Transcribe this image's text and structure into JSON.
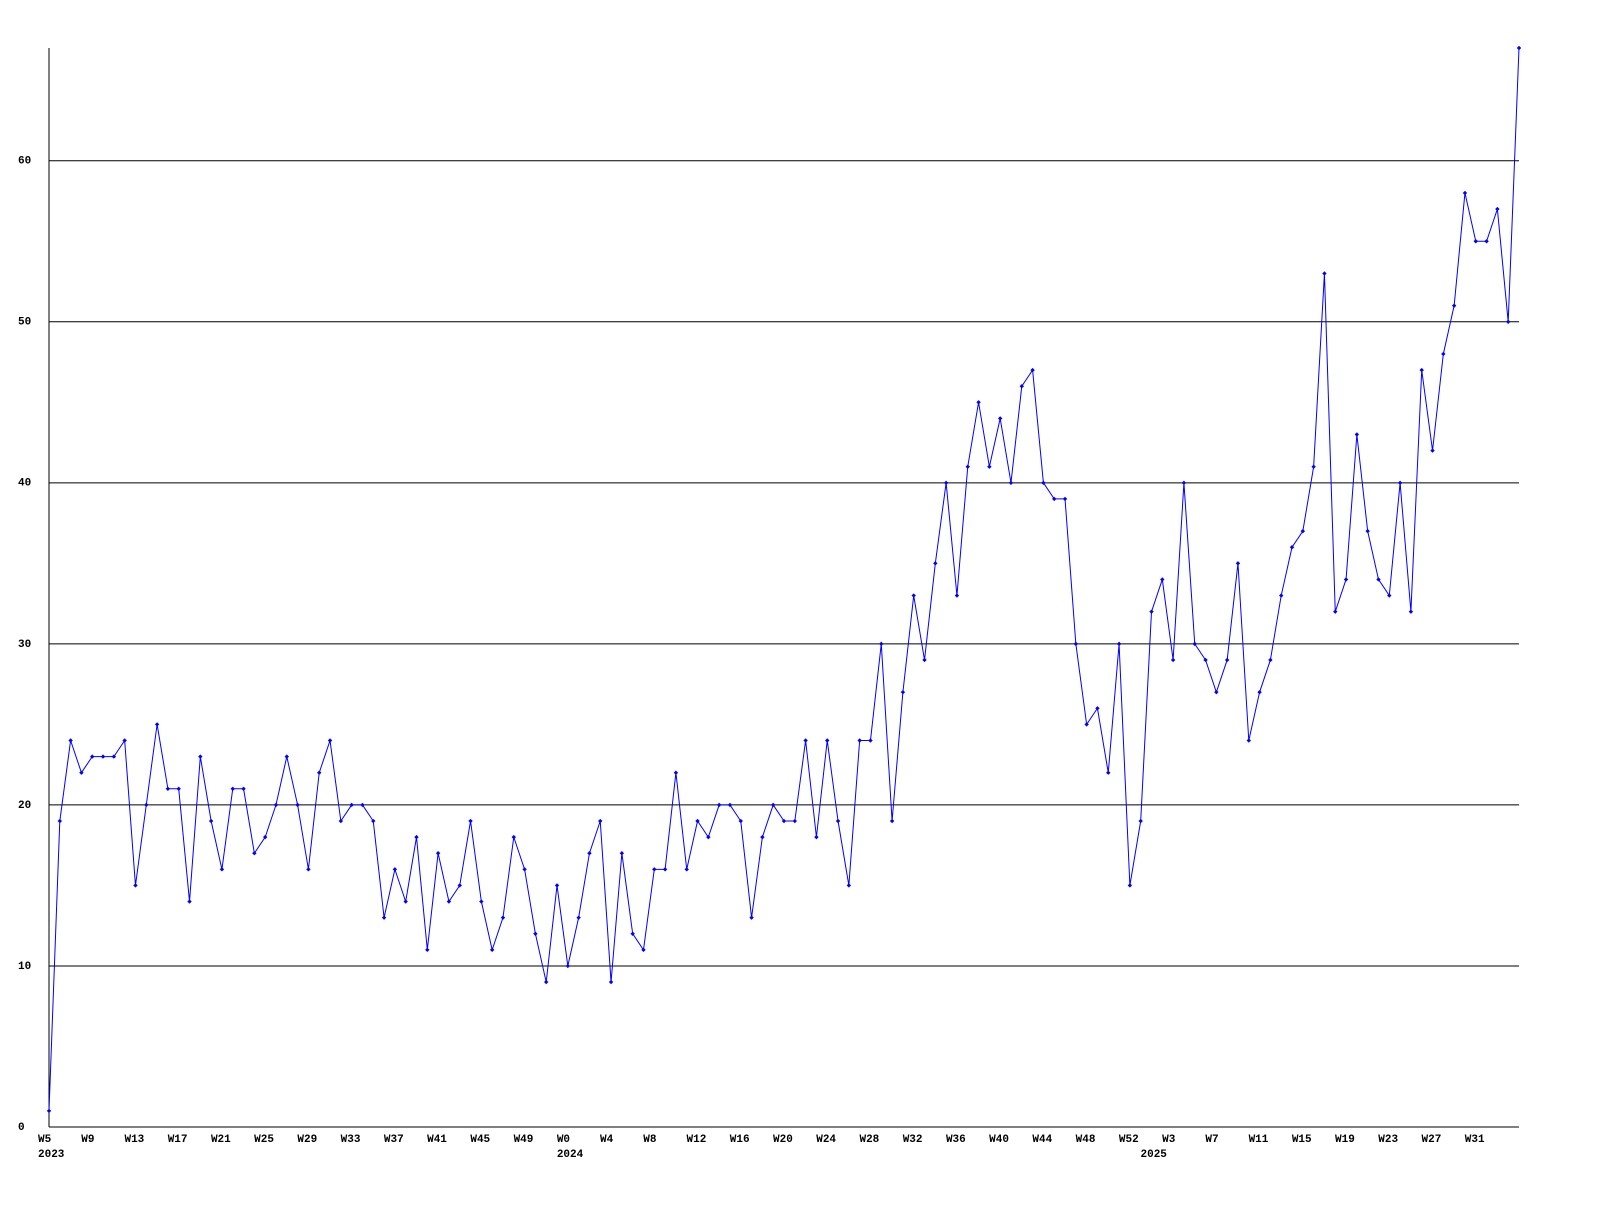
{
  "chart_data": {
    "type": "line",
    "categories": [
      "W5",
      null,
      null,
      null,
      "W9",
      null,
      null,
      null,
      "W13",
      null,
      null,
      null,
      "W17",
      null,
      null,
      null,
      "W21",
      null,
      null,
      null,
      "W25",
      null,
      null,
      null,
      "W29",
      null,
      null,
      null,
      "W33",
      null,
      null,
      null,
      "W37",
      null,
      null,
      null,
      "W41",
      null,
      null,
      null,
      "W45",
      null,
      null,
      null,
      "W49",
      null,
      null,
      null,
      "W0",
      null,
      null,
      null,
      "W4",
      null,
      null,
      null,
      "W8",
      null,
      null,
      null,
      "W12",
      null,
      null,
      null,
      "W16",
      null,
      null,
      null,
      "W20",
      null,
      null,
      null,
      "W24",
      null,
      null,
      null,
      "W28",
      null,
      null,
      null,
      "W32",
      null,
      null,
      null,
      "W36",
      null,
      null,
      null,
      "W40",
      null,
      null,
      null,
      "W44",
      null,
      null,
      null,
      "W48",
      null,
      null,
      null,
      "W52",
      null,
      null,
      null,
      "W3",
      null,
      null,
      null,
      "W7",
      null,
      null,
      null,
      "W11",
      null,
      null,
      null,
      "W15",
      null,
      null,
      null,
      "W19",
      null,
      null,
      null,
      "W23",
      null,
      null,
      null,
      "W27",
      null,
      null,
      null,
      "W31",
      null,
      null,
      null,
      null
    ],
    "category_years": [
      "2023",
      null,
      null,
      null,
      null,
      null,
      null,
      null,
      null,
      null,
      null,
      null,
      null,
      null,
      null,
      null,
      null,
      null,
      null,
      null,
      null,
      null,
      null,
      null,
      null,
      null,
      null,
      null,
      null,
      null,
      null,
      null,
      null,
      null,
      null,
      null,
      null,
      null,
      null,
      null,
      null,
      null,
      null,
      null,
      null,
      null,
      null,
      null,
      "2024",
      null,
      null,
      null,
      null,
      null,
      null,
      null,
      null,
      null,
      null,
      null,
      null,
      null,
      null,
      null,
      null,
      null,
      null,
      null,
      null,
      null,
      null,
      null,
      null,
      null,
      null,
      null,
      null,
      null,
      null,
      null,
      null,
      null,
      null,
      null,
      null,
      null,
      null,
      null,
      null,
      null,
      null,
      null,
      null,
      null,
      null,
      null,
      null,
      null,
      null,
      null,
      null,
      null,
      "2025",
      null,
      null,
      null,
      null,
      null,
      null,
      null,
      null,
      null,
      null,
      null,
      null,
      null,
      null,
      null,
      null,
      null,
      null,
      null,
      null,
      null,
      null,
      null,
      null,
      null,
      null,
      null,
      null,
      null,
      null,
      null,
      null,
      null,
      null
    ],
    "series": [
      {
        "color": "#0000ff",
        "values": [
          1,
          19,
          24,
          22,
          23,
          23,
          23,
          24,
          15,
          20,
          25,
          21,
          21,
          14,
          23,
          19,
          16,
          21,
          21,
          17,
          18,
          20,
          23,
          20,
          16,
          22,
          24,
          19,
          20,
          20,
          19,
          13,
          16,
          14,
          18,
          11,
          17,
          14,
          15,
          19,
          14,
          11,
          13,
          18,
          16,
          12,
          9,
          15,
          10,
          13,
          17,
          19,
          9,
          17,
          12,
          11,
          16,
          16,
          22,
          16,
          19,
          18,
          20,
          20,
          19,
          13,
          18,
          20,
          19,
          19,
          24,
          18,
          24,
          19,
          15,
          24,
          24,
          30,
          19,
          27,
          33,
          29,
          35,
          40,
          33,
          41,
          45,
          41,
          44,
          40,
          46,
          47,
          40,
          39,
          39,
          30,
          25,
          26,
          22,
          30,
          15,
          19,
          32,
          34,
          29,
          40,
          30,
          29,
          27,
          29,
          35,
          24,
          27,
          29,
          33,
          36,
          37,
          41,
          53,
          32,
          34,
          43,
          37,
          34,
          33,
          40,
          32,
          47,
          42,
          48,
          51,
          58,
          55,
          55,
          57,
          50,
          67
        ]
      }
    ],
    "ylim": [
      0,
      67
    ],
    "yticks": [
      0,
      10,
      20,
      30,
      40,
      50,
      60
    ],
    "grid": true
  }
}
